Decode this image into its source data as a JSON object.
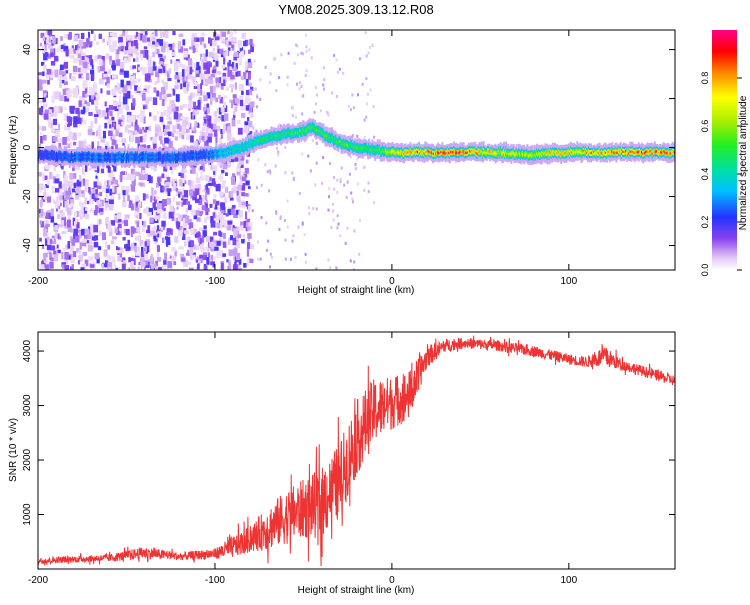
{
  "title": "YM08.2025.309.13.12.R08",
  "chart_data": [
    {
      "type": "heatmap",
      "title": "YM08.2025.309.13.12.R08",
      "xlabel": "Height of straight line (km)",
      "ylabel": "Frequency (Hz)",
      "xlim": [
        -200,
        160
      ],
      "ylim": [
        -50,
        48
      ],
      "x_ticks": [
        -200,
        -100,
        0,
        100
      ],
      "y_ticks": [
        -40,
        -20,
        0,
        20,
        40
      ],
      "colorbar": {
        "label": "Normalized spectral amplitude",
        "range": [
          0,
          1
        ],
        "ticks": [
          0.0,
          0.2,
          0.4,
          0.6,
          0.8
        ]
      },
      "ridge": {
        "x": [
          -200,
          -180,
          -160,
          -140,
          -120,
          -105,
          -95,
          -85,
          -75,
          -65,
          -55,
          -45,
          -38,
          -30,
          -20,
          -10,
          0,
          20,
          40,
          60,
          80,
          100,
          120,
          140,
          160
        ],
        "y": [
          -3,
          -4,
          -4,
          -4,
          -4,
          -3,
          -2,
          0,
          3,
          5,
          6,
          8,
          5,
          2,
          0,
          -1,
          -2,
          -2,
          -2,
          -2,
          -3,
          -2,
          -2,
          -2,
          -2
        ],
        "amplitude": [
          0.25,
          0.3,
          0.3,
          0.3,
          0.28,
          0.3,
          0.4,
          0.45,
          0.5,
          0.5,
          0.55,
          0.6,
          0.55,
          0.55,
          0.6,
          0.55,
          0.75,
          0.9,
          0.95,
          0.7,
          0.75,
          0.8,
          0.85,
          0.9,
          0.92
        ]
      }
    },
    {
      "type": "line",
      "xlabel": "Height of straight line (km)",
      "ylabel": "SNR (10 * v/v)",
      "xlim": [
        -200,
        160
      ],
      "ylim": [
        0,
        4350
      ],
      "x_ticks": [
        -200,
        -100,
        0,
        100
      ],
      "y_ticks": [
        1000,
        2000,
        3000,
        4000
      ],
      "series": [
        {
          "name": "SNR",
          "color": "#ee3333",
          "x": [
            -200,
            -180,
            -160,
            -140,
            -120,
            -100,
            -90,
            -80,
            -70,
            -60,
            -50,
            -40,
            -30,
            -20,
            -10,
            0,
            10,
            20,
            30,
            40,
            60,
            80,
            100,
            110,
            120,
            130,
            140,
            150,
            160
          ],
          "y": [
            150,
            180,
            200,
            300,
            230,
            280,
            400,
            550,
            750,
            950,
            1100,
            1200,
            1600,
            2400,
            2900,
            3050,
            3200,
            3900,
            4100,
            4150,
            4100,
            4000,
            3850,
            3800,
            3900,
            3750,
            3650,
            3550,
            3450
          ],
          "noise": [
            60,
            60,
            70,
            110,
            70,
            100,
            200,
            250,
            400,
            500,
            550,
            650,
            700,
            700,
            600,
            500,
            450,
            200,
            120,
            100,
            100,
            100,
            100,
            100,
            200,
            100,
            100,
            100,
            100
          ]
        }
      ]
    }
  ]
}
